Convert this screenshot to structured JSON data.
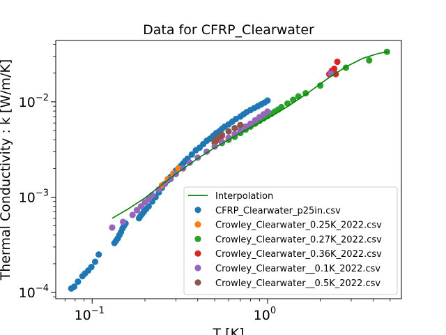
{
  "chart_data": {
    "type": "scatter",
    "title": "Data for CFRP_Clearwater",
    "xlabel": "T [K]",
    "ylabel": "Thermal Conductivity : k [W/m/K]",
    "xscale": "log",
    "yscale": "log",
    "xlim": [
      0.062,
      5.8
    ],
    "ylim": [
      8.6e-05,
      0.044
    ],
    "grid": false,
    "legend_position": "lower-right",
    "x_ticks": [
      {
        "value": 0.1,
        "base": "10",
        "exp": "−1"
      },
      {
        "value": 1,
        "base": "10",
        "exp": "0"
      }
    ],
    "y_ticks": [
      {
        "value": 0.0001,
        "base": "10",
        "exp": "−4"
      },
      {
        "value": 0.001,
        "base": "10",
        "exp": "−3"
      },
      {
        "value": 0.01,
        "base": "10",
        "exp": "−2"
      }
    ],
    "interpolation": {
      "name": "Interpolation",
      "color": "#008000",
      "x": [
        0.13,
        0.16,
        0.2,
        0.25,
        0.3,
        0.4,
        0.5,
        0.7,
        1.0,
        1.3,
        1.7,
        2.2,
        2.8,
        3.5,
        4.3,
        4.9
      ],
      "y": [
        0.0006,
        0.00075,
        0.00098,
        0.00135,
        0.00175,
        0.00255,
        0.0033,
        0.0047,
        0.0067,
        0.0089,
        0.0124,
        0.0175,
        0.0233,
        0.0286,
        0.0322,
        0.0335
      ]
    },
    "series": [
      {
        "name": "CFRP_Clearwater_p25in.csv",
        "color": "#1f77b4",
        "x": [
          0.076,
          0.079,
          0.083,
          0.088,
          0.091,
          0.095,
          0.099,
          0.104,
          0.109,
          0.134,
          0.137,
          0.14,
          0.143,
          0.146,
          0.149,
          0.152,
          0.155,
          0.185,
          0.188,
          0.192,
          0.197,
          0.203,
          0.21,
          0.22,
          0.23,
          0.24,
          0.25,
          0.26,
          0.27,
          0.28,
          0.29,
          0.3,
          0.31,
          0.32,
          0.33,
          0.34,
          0.35,
          0.37,
          0.39,
          0.41,
          0.43,
          0.45,
          0.47,
          0.49,
          0.51,
          0.53,
          0.55,
          0.57,
          0.6,
          0.63,
          0.66,
          0.7,
          0.73,
          0.76,
          0.8,
          0.84,
          0.88,
          0.92,
          0.96,
          1.0
        ],
        "y": [
          0.00011,
          0.000115,
          0.00013,
          0.000148,
          0.000158,
          0.00017,
          0.000185,
          0.00021,
          0.00025,
          0.00033,
          0.00035,
          0.00037,
          0.0004,
          0.00043,
          0.00047,
          0.0005,
          0.00053,
          0.0006,
          0.00063,
          0.00066,
          0.0007,
          0.00075,
          0.0008,
          0.0009,
          0.001,
          0.00112,
          0.00125,
          0.00138,
          0.0015,
          0.00163,
          0.00176,
          0.0019,
          0.002,
          0.00212,
          0.00225,
          0.0024,
          0.00253,
          0.0028,
          0.0031,
          0.0033,
          0.0036,
          0.0039,
          0.0041,
          0.0044,
          0.0047,
          0.0049,
          0.0052,
          0.0055,
          0.0058,
          0.0062,
          0.0066,
          0.007,
          0.0074,
          0.0078,
          0.0082,
          0.0086,
          0.009,
          0.0094,
          0.0098,
          0.0103
        ]
      },
      {
        "name": "Crowley_Clearwater_0.25K_2022.csv",
        "color": "#ff7f0e",
        "x": [
          0.25,
          0.27,
          0.29,
          0.31
        ],
        "y": [
          0.00133,
          0.00155,
          0.00177,
          0.002
        ]
      },
      {
        "name": "Crowley_Clearwater_0.27K_2022.csv",
        "color": "#2ca02c",
        "x": [
          0.5,
          0.55,
          0.6,
          0.65,
          0.7,
          0.75,
          0.8,
          0.85,
          0.9,
          0.95,
          1.0,
          1.05,
          1.1,
          1.15,
          1.2,
          1.3,
          1.4,
          1.5,
          1.65,
          2.0,
          2.8,
          3.8,
          4.8
        ],
        "y": [
          0.0034,
          0.0037,
          0.004,
          0.0043,
          0.0047,
          0.0051,
          0.0055,
          0.0059,
          0.0063,
          0.0067,
          0.0071,
          0.0075,
          0.0079,
          0.0083,
          0.0088,
          0.0096,
          0.0105,
          0.0114,
          0.0123,
          0.0148,
          0.0228,
          0.0272,
          0.0335
        ]
      },
      {
        "name": "Crowley_Clearwater_0.36K_2022.csv",
        "color": "#d62728",
        "x": [
          0.5,
          0.52,
          0.55,
          2.25,
          2.32,
          2.4,
          2.45,
          2.5
        ],
        "y": [
          0.0037,
          0.004,
          0.0044,
          0.0195,
          0.021,
          0.0222,
          0.0195,
          0.0263
        ]
      },
      {
        "name": "Crowley_Clearwater__0.1K_2022.csv",
        "color": "#9467bd",
        "x": [
          0.13,
          0.15,
          0.17,
          0.18,
          0.19,
          0.2,
          0.21,
          0.22,
          0.24,
          0.26,
          0.28,
          0.3,
          0.33,
          0.36,
          0.4,
          0.45,
          0.5,
          0.55,
          0.6,
          0.65,
          0.7,
          0.75,
          0.8,
          0.85,
          0.9,
          0.95,
          1.0,
          2.3
        ],
        "y": [
          0.00048,
          0.00055,
          0.00065,
          0.00073,
          0.0008,
          0.00088,
          0.00095,
          0.00105,
          0.0012,
          0.00138,
          0.00155,
          0.00175,
          0.002,
          0.0023,
          0.0026,
          0.003,
          0.0034,
          0.0038,
          0.0042,
          0.0046,
          0.005,
          0.0055,
          0.0059,
          0.0064,
          0.0069,
          0.0074,
          0.0079,
          0.0198
        ]
      },
      {
        "name": "Crowley_Clearwater__0.5K_2022.csv",
        "color": "#8c564b",
        "x": [
          0.5,
          0.52,
          0.55,
          0.6,
          0.65,
          0.7
        ],
        "y": [
          0.0039,
          0.0042,
          0.0045,
          0.0049,
          0.0053,
          0.0057
        ]
      }
    ]
  }
}
